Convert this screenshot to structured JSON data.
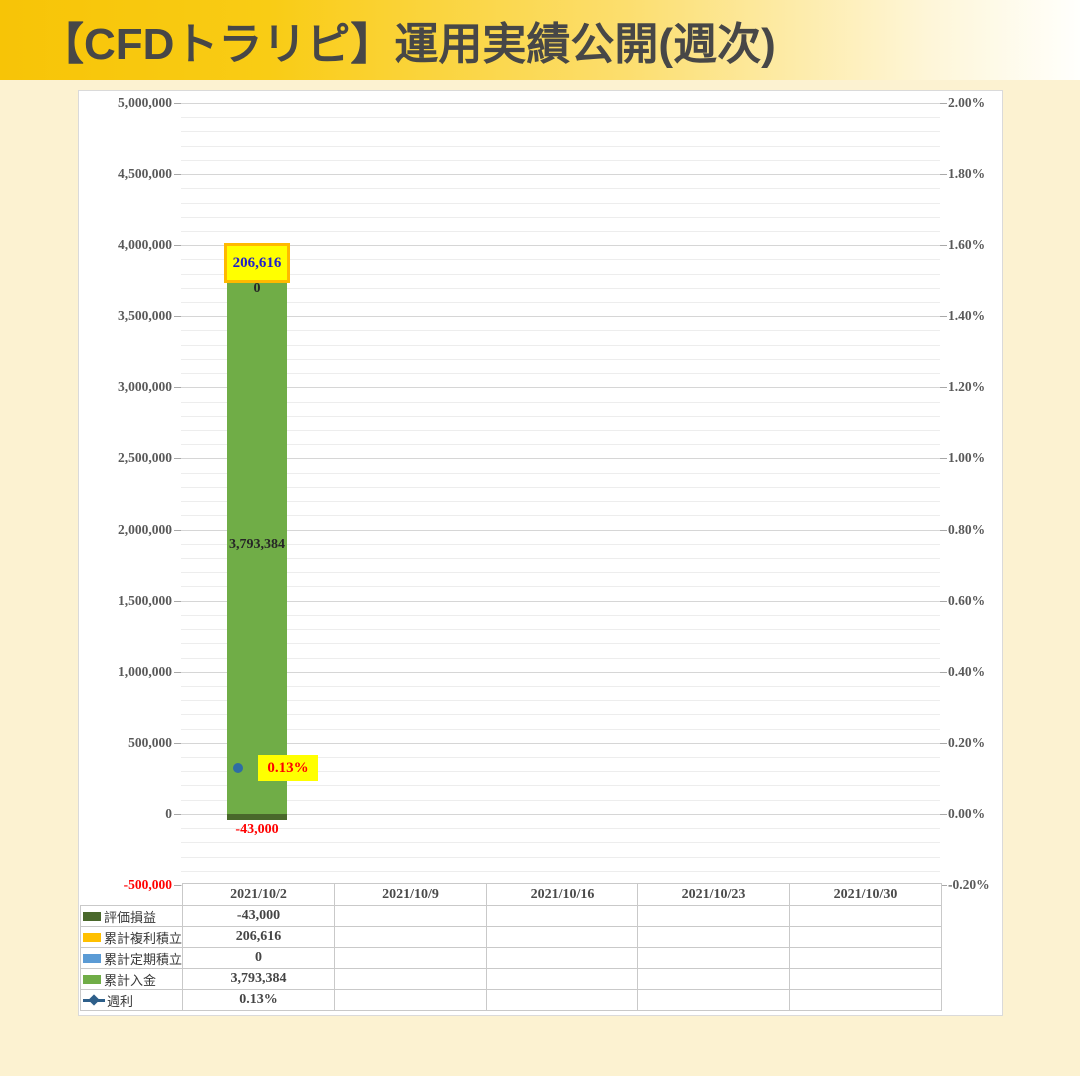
{
  "header": {
    "title": "【CFDトラリピ】運用実績公開(週次)"
  },
  "colors": {
    "banner_gold": "#F7C407",
    "page_bg": "#FCF2D1",
    "valuation": "#49682B",
    "compound": "#FFC000",
    "periodic": "#5B9BD5",
    "deposit": "#70AD47",
    "weekly_line": "#2E5F8A",
    "weekly_marker": "#2E6DA4",
    "label_box_bg": "#FFFF00",
    "label_box_border": "#FFB900",
    "blue_text": "#1F1FCC",
    "red_text": "#FF0000",
    "axis_text": "#595959",
    "grid_major": "#D6D6D6",
    "grid_minor": "#EDEDED"
  },
  "chart_data": {
    "type": "combo: stacked bar (left axis) + line with markers (right axis)",
    "title": "",
    "categories": [
      "2021/10/2",
      "2021/10/9",
      "2021/10/16",
      "2021/10/23",
      "2021/10/30"
    ],
    "series": [
      {
        "key": "valuation-pl",
        "name": "評価損益",
        "chart": "bar",
        "color": "#49682B",
        "values": [
          -43000,
          null,
          null,
          null,
          null
        ]
      },
      {
        "key": "compound-accum",
        "name": "累計複利積立",
        "chart": "bar",
        "color": "#FFC000",
        "values": [
          206616,
          null,
          null,
          null,
          null
        ]
      },
      {
        "key": "periodic-accum",
        "name": "累計定期積立",
        "chart": "bar",
        "color": "#5B9BD5",
        "values": [
          0,
          null,
          null,
          null,
          null
        ]
      },
      {
        "key": "total-deposit",
        "name": "累計入金",
        "chart": "bar",
        "color": "#70AD47",
        "values": [
          3793384,
          null,
          null,
          null,
          null
        ]
      },
      {
        "key": "weekly-rate",
        "name": "週利",
        "chart": "line",
        "color": "#2E6DA4",
        "values": [
          0.13,
          null,
          null,
          null,
          null
        ]
      }
    ],
    "left_axis": {
      "min": -500000,
      "max": 5000000,
      "major_step": 500000,
      "minor_step": 100000,
      "ticks": [
        "5,000,000",
        "4,500,000",
        "4,000,000",
        "3,500,000",
        "3,000,000",
        "2,500,000",
        "2,000,000",
        "1,500,000",
        "1,000,000",
        "500,000",
        "0",
        "-500,000"
      ],
      "negative_tick_color": "#FF0000"
    },
    "right_axis": {
      "min": -0.2,
      "max": 2.0,
      "major_step": 0.2,
      "ticks": [
        "2.00%",
        "1.80%",
        "1.60%",
        "1.40%",
        "1.20%",
        "1.00%",
        "0.80%",
        "0.60%",
        "0.40%",
        "0.20%",
        "0.00%",
        "-0.20%"
      ]
    },
    "data_labels": {
      "compound": "206,616",
      "periodic": "0",
      "deposit": "3,793,384",
      "valuation": "-43,000",
      "weekly": "0.13%"
    },
    "grid": "horizontal major + minor gridlines",
    "legend_position": "table rows bottom-left"
  },
  "table": {
    "date_headers": [
      "2021/10/2",
      "2021/10/9",
      "2021/10/16",
      "2021/10/23",
      "2021/10/30"
    ],
    "rows": [
      {
        "key": "valuation-pl",
        "label": "評価損益",
        "swatch": "bar",
        "color": "#49682B",
        "values": [
          "-43,000",
          "",
          "",
          "",
          ""
        ]
      },
      {
        "key": "compound-accum",
        "label": "累計複利積立",
        "swatch": "bar",
        "color": "#FFC000",
        "values": [
          "206,616",
          "",
          "",
          "",
          ""
        ]
      },
      {
        "key": "periodic-accum",
        "label": "累計定期積立",
        "swatch": "bar",
        "color": "#5B9BD5",
        "values": [
          "0",
          "",
          "",
          "",
          ""
        ]
      },
      {
        "key": "total-deposit",
        "label": "累計入金",
        "swatch": "bar",
        "color": "#70AD47",
        "values": [
          "3,793,384",
          "",
          "",
          "",
          ""
        ]
      },
      {
        "key": "weekly-rate",
        "label": "週利",
        "swatch": "line",
        "color": "#2E5F8A",
        "values": [
          "0.13%",
          "",
          "",
          "",
          ""
        ]
      }
    ]
  }
}
